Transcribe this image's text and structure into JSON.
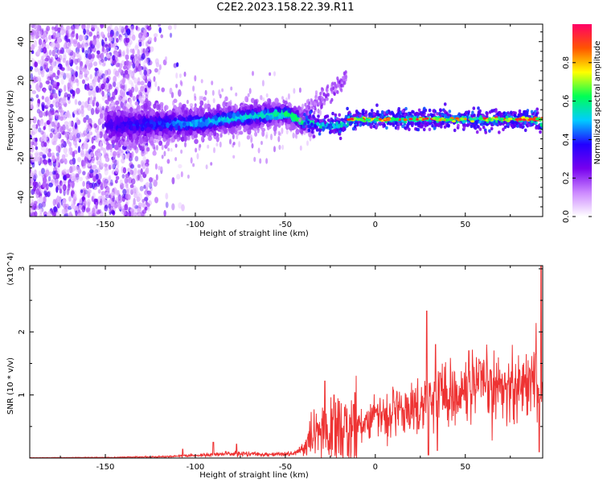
{
  "title": "C2E2.2023.158.22.39.R11",
  "colors": {
    "line": "#ee3333",
    "axis": "#000000",
    "background": "#ffffff"
  },
  "chart_data": [
    {
      "type": "heatmap",
      "xlabel": "Height of straight line (km)",
      "ylabel": "Frequency (Hz)",
      "xlim": [
        -192,
        93
      ],
      "ylim": [
        -50,
        49
      ],
      "xticks": [
        -150,
        -100,
        -50,
        0,
        50
      ],
      "yticks": [
        -40,
        -20,
        0,
        20,
        40
      ],
      "grid": false,
      "colorbar": {
        "label": "Normalized spectral amplitude",
        "range": [
          0,
          1
        ],
        "ticks": [
          "0.0",
          "0.2",
          "0.4",
          "0.6",
          "0.8"
        ],
        "tick_values": [
          0.0,
          0.2,
          0.4,
          0.6,
          0.8
        ],
        "colormap": [
          "#ffffff",
          "#cc88ff",
          "#7700ee",
          "#2200ff",
          "#00ccff",
          "#00ff55",
          "#ffff00",
          "#ff5500",
          "#ff0066"
        ]
      },
      "features": {
        "noise_region_x": [
          -192,
          -125
        ],
        "ridge_points": [
          [
            -140,
            -3
          ],
          [
            -100,
            -2
          ],
          [
            -75,
            1
          ],
          [
            -50,
            3
          ],
          [
            -40,
            -1
          ],
          [
            -30,
            -3
          ],
          [
            -20,
            -3
          ],
          [
            0,
            0
          ],
          [
            30,
            0
          ],
          [
            50,
            0
          ],
          [
            90,
            -1
          ]
        ],
        "strong_line_x": [
          -15,
          93
        ],
        "strong_line_freq": 0
      }
    },
    {
      "type": "line",
      "xlabel": "Height of straight line (km)",
      "ylabel": "SNR (10 * v/v)",
      "yscale_label": "(x10^4)",
      "xlim": [
        -192,
        93
      ],
      "ylim": [
        0,
        3.05
      ],
      "xticks": [
        -150,
        -100,
        -50,
        0,
        50
      ],
      "yticks": [
        1,
        2,
        3
      ],
      "grid": false,
      "series": [
        {
          "baseline": [
            [
              -192,
              0.005
            ],
            [
              -150,
              0.01
            ],
            [
              -120,
              0.02
            ],
            [
              -100,
              0.04
            ],
            [
              -80,
              0.07
            ],
            [
              -60,
              0.06
            ],
            [
              -45,
              0.07
            ],
            [
              -40,
              0.15
            ],
            [
              -35,
              0.3
            ],
            [
              -30,
              0.38
            ],
            [
              -25,
              0.4
            ],
            [
              -20,
              0.45
            ],
            [
              -15,
              0.45
            ],
            [
              -10,
              0.55
            ],
            [
              -5,
              0.6
            ],
            [
              0,
              0.68
            ],
            [
              10,
              0.7
            ],
            [
              20,
              0.78
            ],
            [
              27,
              0.85
            ],
            [
              30,
              0.95
            ],
            [
              33,
              1.05
            ],
            [
              40,
              1.0
            ],
            [
              50,
              1.05
            ],
            [
              60,
              1.1
            ],
            [
              70,
              1.12
            ],
            [
              80,
              1.15
            ],
            [
              88,
              1.2
            ],
            [
              93,
              1.2
            ]
          ],
          "spikes": [
            [
              -107,
              0.14
            ],
            [
              -90,
              0.25
            ],
            [
              -77,
              0.22
            ],
            [
              -28,
              1.22
            ],
            [
              -23,
              1.0
            ],
            [
              -20,
              0.9
            ],
            [
              -12,
              0.85
            ],
            [
              0,
              0.72
            ],
            [
              14,
              0.8
            ],
            [
              22,
              0.8
            ],
            [
              28.5,
              2.33
            ],
            [
              29.5,
              0.05
            ],
            [
              33.5,
              1.8
            ],
            [
              34.5,
              0.12
            ],
            [
              36,
              1.35
            ],
            [
              52,
              1.7
            ],
            [
              58,
              1.5
            ],
            [
              64,
              1.4
            ],
            [
              72,
              1.35
            ],
            [
              80,
              1.4
            ],
            [
              86,
              1.4
            ],
            [
              89,
              1.65
            ],
            [
              91,
              0.1
            ],
            [
              92,
              3.05
            ],
            [
              92.8,
              1.2
            ]
          ]
        }
      ]
    }
  ]
}
